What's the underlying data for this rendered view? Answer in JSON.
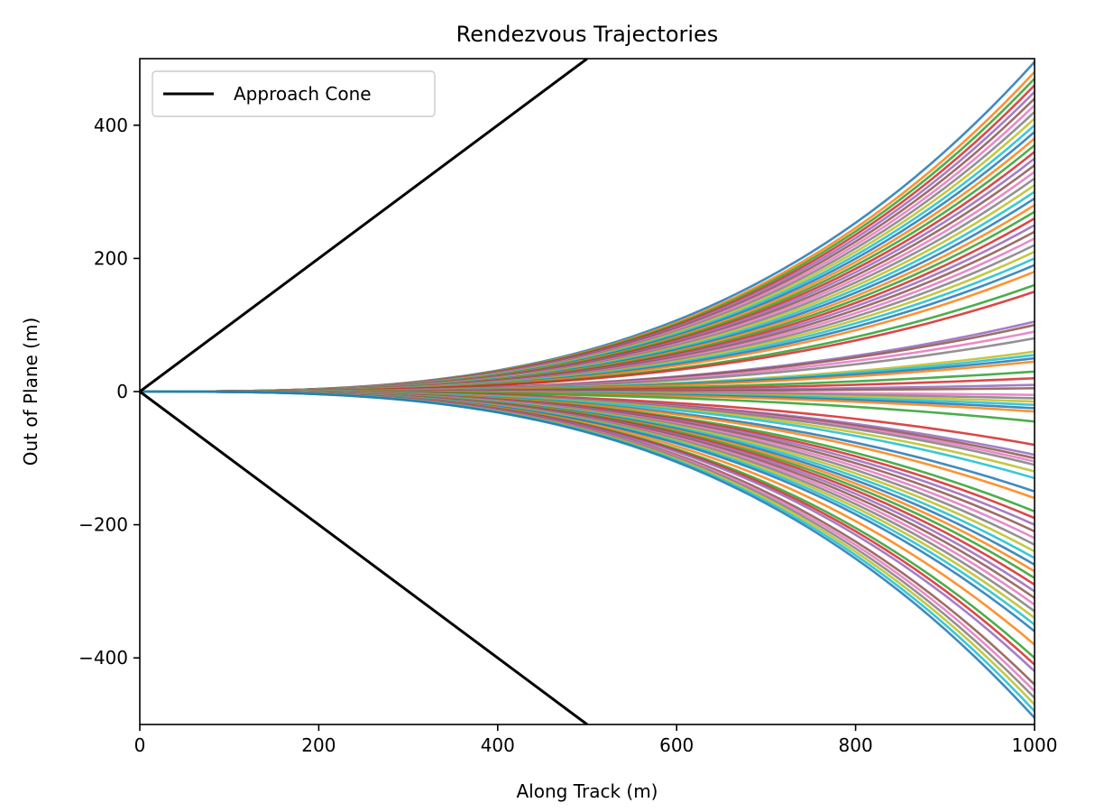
{
  "chart_data": {
    "type": "line",
    "title": "Rendezvous Trajectories",
    "xlabel": "Along Track (m)",
    "ylabel": "Out of Plane (m)",
    "xlim": [
      0,
      1000
    ],
    "ylim": [
      -500,
      500
    ],
    "xticks": [
      0,
      200,
      400,
      600,
      800,
      1000
    ],
    "yticks": [
      -400,
      -200,
      0,
      200,
      400
    ],
    "xtick_labels": [
      "0",
      "200",
      "400",
      "600",
      "800",
      "1000"
    ],
    "ytick_labels": [
      "−400",
      "−200",
      "0",
      "200",
      "400"
    ],
    "grid": false,
    "legend_position": "top-left",
    "legend": [
      {
        "name": "Approach Cone",
        "color": "#000000"
      }
    ],
    "approach_cone": {
      "name": "Approach Cone",
      "color": "#000000",
      "upper": {
        "x": [
          0,
          500
        ],
        "y": [
          0,
          500
        ]
      },
      "lower": {
        "x": [
          0,
          500
        ],
        "y": [
          0,
          -500
        ]
      }
    },
    "trajectory_model": "y = A * (x/1000)^3",
    "trajectory_end_values": [
      495,
      480,
      470,
      460,
      450,
      440,
      430,
      420,
      410,
      400,
      390,
      380,
      370,
      360,
      350,
      340,
      330,
      320,
      310,
      300,
      290,
      280,
      270,
      260,
      250,
      240,
      230,
      220,
      210,
      200,
      190,
      180,
      160,
      150,
      105,
      100,
      90,
      80,
      60,
      55,
      50,
      45,
      30,
      20,
      10,
      5,
      -5,
      -10,
      -15,
      -20,
      -25,
      -30,
      -45,
      -80,
      -95,
      -100,
      -105,
      -110,
      -120,
      -130,
      -150,
      -160,
      -180,
      -190,
      -200,
      -210,
      -220,
      -230,
      -240,
      -250,
      -260,
      -270,
      -280,
      -290,
      -300,
      -310,
      -320,
      -330,
      -340,
      -350,
      -360,
      -380,
      -400,
      -410,
      -420,
      -440,
      -450,
      -460,
      -470,
      -480,
      -490
    ],
    "colors": [
      "#1f77b4",
      "#ff7f0e",
      "#2ca02c",
      "#d62728",
      "#9467bd",
      "#8c564b",
      "#e377c2",
      "#7f7f7f",
      "#bcbd22",
      "#17becf"
    ]
  }
}
